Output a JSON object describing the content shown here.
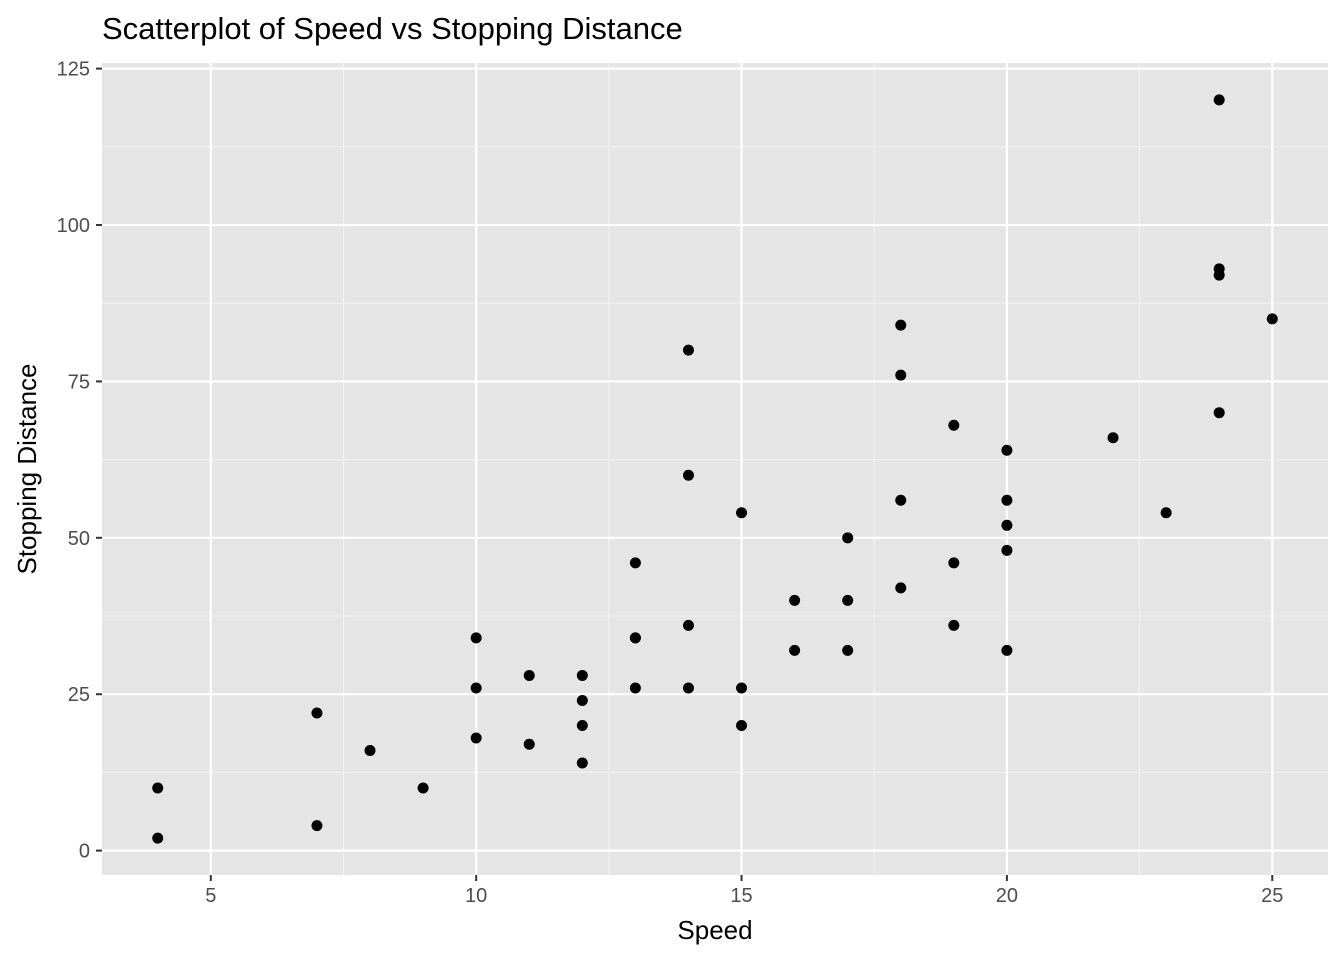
{
  "chart_data": {
    "type": "scatter",
    "title": "Scatterplot of Speed vs Stopping Distance",
    "xlabel": "Speed",
    "ylabel": "Stopping Distance",
    "xlim": [
      2.95,
      26.05
    ],
    "ylim": [
      -3.9,
      125.9
    ],
    "x_ticks": [
      5,
      10,
      15,
      20,
      25
    ],
    "x_tick_labels": [
      "5",
      "10",
      "15",
      "20",
      "25"
    ],
    "y_ticks": [
      0,
      25,
      50,
      75,
      100,
      125
    ],
    "y_tick_labels": [
      "0",
      "25",
      "50",
      "75",
      "100",
      "125"
    ],
    "grid": true,
    "colors": {
      "panel_background": "#e5e5e5",
      "grid_major": "#ffffff",
      "grid_minor": "#f2f2f2",
      "point": "#000000",
      "tick_text": "#4d4d4d"
    },
    "points": [
      {
        "x": 4,
        "y": 2
      },
      {
        "x": 4,
        "y": 10
      },
      {
        "x": 7,
        "y": 4
      },
      {
        "x": 7,
        "y": 22
      },
      {
        "x": 8,
        "y": 16
      },
      {
        "x": 9,
        "y": 10
      },
      {
        "x": 10,
        "y": 18
      },
      {
        "x": 10,
        "y": 26
      },
      {
        "x": 10,
        "y": 34
      },
      {
        "x": 11,
        "y": 17
      },
      {
        "x": 11,
        "y": 28
      },
      {
        "x": 12,
        "y": 14
      },
      {
        "x": 12,
        "y": 20
      },
      {
        "x": 12,
        "y": 24
      },
      {
        "x": 12,
        "y": 28
      },
      {
        "x": 13,
        "y": 26
      },
      {
        "x": 13,
        "y": 34
      },
      {
        "x": 13,
        "y": 34
      },
      {
        "x": 13,
        "y": 46
      },
      {
        "x": 14,
        "y": 26
      },
      {
        "x": 14,
        "y": 36
      },
      {
        "x": 14,
        "y": 60
      },
      {
        "x": 14,
        "y": 80
      },
      {
        "x": 15,
        "y": 20
      },
      {
        "x": 15,
        "y": 26
      },
      {
        "x": 15,
        "y": 54
      },
      {
        "x": 16,
        "y": 32
      },
      {
        "x": 16,
        "y": 40
      },
      {
        "x": 17,
        "y": 32
      },
      {
        "x": 17,
        "y": 40
      },
      {
        "x": 17,
        "y": 50
      },
      {
        "x": 18,
        "y": 42
      },
      {
        "x": 18,
        "y": 56
      },
      {
        "x": 18,
        "y": 76
      },
      {
        "x": 18,
        "y": 84
      },
      {
        "x": 19,
        "y": 36
      },
      {
        "x": 19,
        "y": 46
      },
      {
        "x": 19,
        "y": 68
      },
      {
        "x": 20,
        "y": 32
      },
      {
        "x": 20,
        "y": 48
      },
      {
        "x": 20,
        "y": 52
      },
      {
        "x": 20,
        "y": 56
      },
      {
        "x": 20,
        "y": 64
      },
      {
        "x": 22,
        "y": 66
      },
      {
        "x": 23,
        "y": 54
      },
      {
        "x": 24,
        "y": 70
      },
      {
        "x": 24,
        "y": 92
      },
      {
        "x": 24,
        "y": 93
      },
      {
        "x": 24,
        "y": 120
      },
      {
        "x": 25,
        "y": 85
      }
    ]
  }
}
